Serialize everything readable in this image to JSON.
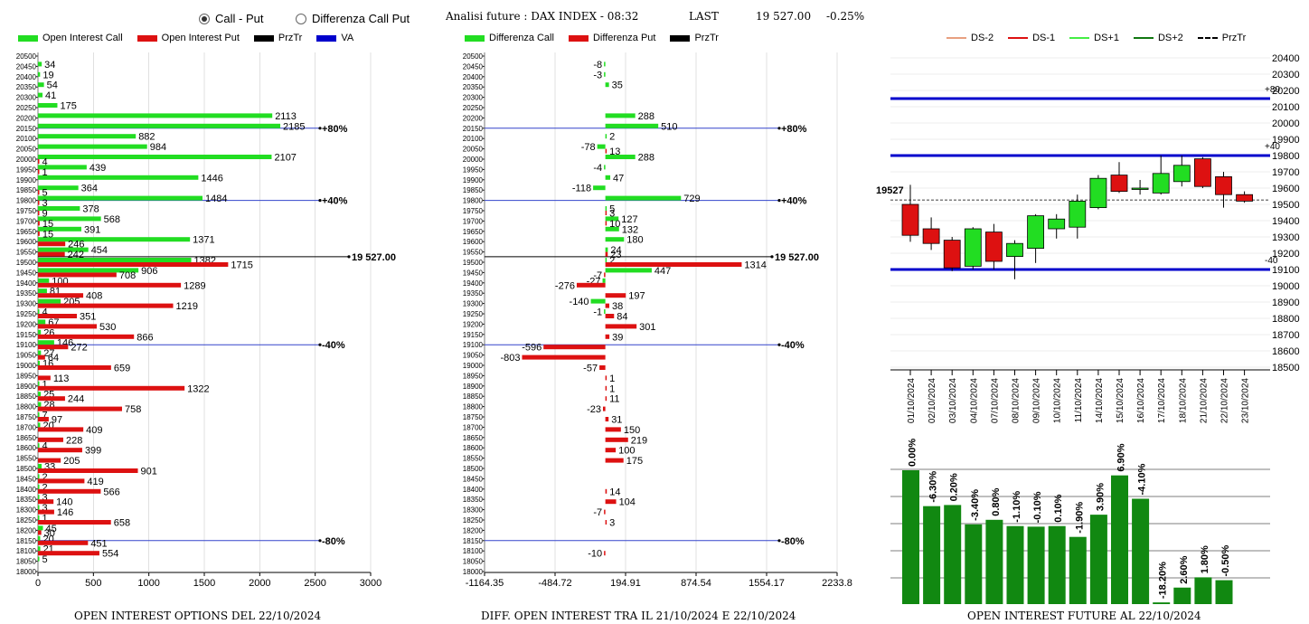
{
  "header": {
    "radio_call_put": "Call - Put",
    "radio_diff": "Differenza Call Put",
    "title": "Analisi future : DAX INDEX - 08:32",
    "last_label": "LAST",
    "last_value": "19 527.00",
    "change": "-0.25%"
  },
  "legend1": [
    {
      "label": "Open Interest Call",
      "color": "#22dd22",
      "kind": "bar"
    },
    {
      "label": "Open Interest Put",
      "color": "#dd1111",
      "kind": "bar"
    },
    {
      "label": "PrzTr",
      "color": "#000000",
      "kind": "bar"
    },
    {
      "label": "VA",
      "color": "#0000cc",
      "kind": "bar"
    }
  ],
  "legend2": [
    {
      "label": "Differenza Call",
      "color": "#22dd22",
      "kind": "bar"
    },
    {
      "label": "Differenza Put",
      "color": "#dd1111",
      "kind": "bar"
    },
    {
      "label": "PrzTr",
      "color": "#000000",
      "kind": "bar"
    }
  ],
  "legend3": [
    {
      "label": "DS-2",
      "color": "#e8a080",
      "kind": "line"
    },
    {
      "label": "DS-1",
      "color": "#dd1111",
      "kind": "line"
    },
    {
      "label": "DS+1",
      "color": "#44ee44",
      "kind": "line"
    },
    {
      "label": "DS+2",
      "color": "#117711",
      "kind": "line"
    },
    {
      "label": "PrzTr",
      "color": "#000000",
      "kind": "dash"
    }
  ],
  "footers": {
    "oi": "OPEN INTEREST OPTIONS DEL 22/10/2024",
    "diff": "DIFF. OPEN INTEREST TRA IL 21/10/2024 E 22/10/2024",
    "future": "OPEN INTEREST FUTURE AL 22/10/2024"
  },
  "chart_data": [
    {
      "type": "bar",
      "orientation": "horizontal",
      "strikes": [
        20500,
        20450,
        20400,
        20350,
        20300,
        20250,
        20200,
        20150,
        20100,
        20050,
        20000,
        19950,
        19900,
        19850,
        19800,
        19750,
        19700,
        19650,
        19600,
        19550,
        19500,
        19450,
        19400,
        19350,
        19300,
        19250,
        19200,
        19150,
        19100,
        19050,
        19000,
        18950,
        18900,
        18850,
        18800,
        18750,
        18700,
        18650,
        18600,
        18550,
        18500,
        18450,
        18400,
        18350,
        18300,
        18250,
        18200,
        18150,
        18100,
        18050,
        18000
      ],
      "series": [
        {
          "name": "Open Interest Call",
          "values": [
            null,
            34,
            19,
            54,
            41,
            175,
            2113,
            2185,
            882,
            984,
            2107,
            439,
            1446,
            364,
            1484,
            378,
            568,
            391,
            1371,
            454,
            1382,
            906,
            100,
            81,
            205,
            4,
            67,
            26,
            146,
            27,
            16,
            null,
            1,
            25,
            28,
            7,
            20,
            null,
            4,
            null,
            33,
            2,
            2,
            3,
            3,
            1,
            45,
            20,
            21,
            5,
            null
          ]
        },
        {
          "name": "Open Interest Put",
          "values": [
            null,
            null,
            null,
            null,
            null,
            null,
            null,
            null,
            null,
            null,
            4,
            1,
            null,
            5,
            3,
            9,
            15,
            15,
            246,
            242,
            1715,
            708,
            1289,
            408,
            1219,
            351,
            530,
            866,
            272,
            64,
            659,
            113,
            1322,
            244,
            758,
            97,
            409,
            228,
            399,
            205,
            901,
            419,
            566,
            140,
            146,
            658,
            30,
            451,
            554,
            null,
            null
          ]
        }
      ],
      "xticks": [
        0,
        500,
        1000,
        1500,
        2000,
        2500,
        3000
      ],
      "xlim": [
        0,
        3000
      ],
      "annotations": [
        {
          "strike": 20150,
          "label": "+80%"
        },
        {
          "strike": 19800,
          "label": "+40%"
        },
        {
          "strike": 19100,
          "label": "-40%"
        },
        {
          "strike": 18150,
          "label": "-80%"
        }
      ],
      "price_line": {
        "strike": 19527,
        "label": "19 527.00"
      }
    },
    {
      "type": "bar",
      "orientation": "horizontal",
      "strikes": [
        20500,
        20450,
        20400,
        20350,
        20300,
        20250,
        20200,
        20150,
        20100,
        20050,
        20000,
        19950,
        19900,
        19850,
        19800,
        19750,
        19700,
        19650,
        19600,
        19550,
        19500,
        19450,
        19400,
        19350,
        19300,
        19250,
        19200,
        19150,
        19100,
        19050,
        19000,
        18950,
        18900,
        18850,
        18800,
        18750,
        18700,
        18650,
        18600,
        18550,
        18500,
        18450,
        18400,
        18350,
        18300,
        18250,
        18200,
        18150,
        18100,
        18050,
        18000
      ],
      "series": [
        {
          "name": "Differenza Call",
          "values": [
            null,
            -8,
            -3,
            35,
            null,
            null,
            288,
            510,
            2,
            -78,
            288,
            -4,
            47,
            -118,
            729,
            5,
            127,
            132,
            180,
            24,
            2,
            447,
            -27,
            null,
            -140,
            -1,
            null,
            null,
            null,
            null,
            null,
            null,
            null,
            null,
            null,
            null,
            null,
            null,
            null,
            null,
            null,
            null,
            null,
            null,
            null,
            null,
            null,
            null,
            null,
            null,
            null
          ]
        },
        {
          "name": "Differenza Put",
          "values": [
            null,
            null,
            null,
            null,
            null,
            null,
            null,
            null,
            null,
            13,
            null,
            null,
            null,
            null,
            null,
            3,
            10,
            null,
            null,
            23,
            1314,
            -7,
            -276,
            197,
            38,
            84,
            301,
            39,
            -596,
            -803,
            -57,
            1,
            1,
            11,
            -23,
            31,
            150,
            219,
            100,
            175,
            null,
            null,
            14,
            104,
            -7,
            3,
            null,
            null,
            -10,
            null,
            null
          ]
        }
      ],
      "xticks": [
        -1164.35,
        -484.72,
        194.91,
        874.54,
        1554.17,
        2233.8
      ],
      "xlim": [
        -1164.35,
        2233.8
      ],
      "annotations": [
        {
          "strike": 20150,
          "label": "+80%"
        },
        {
          "strike": 19800,
          "label": "+40%"
        },
        {
          "strike": 19100,
          "label": "-40%"
        },
        {
          "strike": 18150,
          "label": "-80%"
        }
      ],
      "price_line": {
        "strike": 19527,
        "label": "19 527.00"
      }
    },
    {
      "type": "candlestick",
      "dates": [
        "01/10/2024",
        "02/10/2024",
        "03/10/2024",
        "04/10/2024",
        "07/10/2024",
        "08/10/2024",
        "09/10/2024",
        "10/10/2024",
        "11/10/2024",
        "14/10/2024",
        "15/10/2024",
        "16/10/2024",
        "17/10/2024",
        "18/10/2024",
        "21/10/2024",
        "22/10/2024",
        "23/10/2024"
      ],
      "open": [
        19500,
        19350,
        19280,
        19120,
        19330,
        19180,
        19230,
        19350,
        19360,
        19480,
        19680,
        19600,
        19570,
        19640,
        19780,
        19670,
        19560
      ],
      "close": [
        19310,
        19260,
        19110,
        19350,
        19150,
        19260,
        19430,
        19410,
        19520,
        19660,
        19580,
        19600,
        19690,
        19740,
        19610,
        19560,
        19520
      ],
      "high": [
        19620,
        19420,
        19300,
        19360,
        19380,
        19280,
        19440,
        19440,
        19560,
        19680,
        19760,
        19650,
        19800,
        19800,
        19790,
        19700,
        19580
      ],
      "low": [
        19270,
        19220,
        19090,
        19100,
        19100,
        19040,
        19140,
        19290,
        19290,
        19470,
        19570,
        19560,
        19560,
        19610,
        19600,
        19480,
        19510
      ],
      "ylim": [
        18500,
        20400
      ],
      "yticks": [
        18500,
        18600,
        18700,
        18800,
        18900,
        19000,
        19100,
        19200,
        19300,
        19400,
        19500,
        19600,
        19700,
        19800,
        19900,
        20000,
        20100,
        20200,
        20300,
        20400
      ],
      "levels": [
        {
          "value": 20150,
          "label": "+80"
        },
        {
          "value": 19800,
          "label": "+40"
        },
        {
          "value": 19100,
          "label": "-40"
        }
      ],
      "price": {
        "value": 19527,
        "label": "19527"
      }
    },
    {
      "type": "bar",
      "categories": [
        "01/10/2024",
        "02/10/2024",
        "03/10/2024",
        "04/10/2024",
        "07/10/2024",
        "08/10/2024",
        "09/10/2024",
        "10/10/2024",
        "11/10/2024",
        "14/10/2024",
        "15/10/2024",
        "16/10/2024",
        "17/10/2024",
        "18/10/2024",
        "21/10/2024",
        "22/10/2024"
      ],
      "labels": [
        "0.00%",
        "-6.30%",
        "0.20%",
        "-3.40%",
        "0.80%",
        "-1.10%",
        "-0.10%",
        "0.10%",
        "-1.90%",
        "3.90%",
        "6.90%",
        "-4.10%",
        "-18.20%",
        "2.60%",
        "1.80%",
        "-0.50%"
      ],
      "values": [
        100,
        93.7,
        93.9,
        90.5,
        91.3,
        90.2,
        90.1,
        90.2,
        88.3,
        92.2,
        99.1,
        95.0,
        76.8,
        79.4,
        81.2,
        80.7
      ],
      "ylim": [
        76.5,
        100
      ]
    }
  ]
}
